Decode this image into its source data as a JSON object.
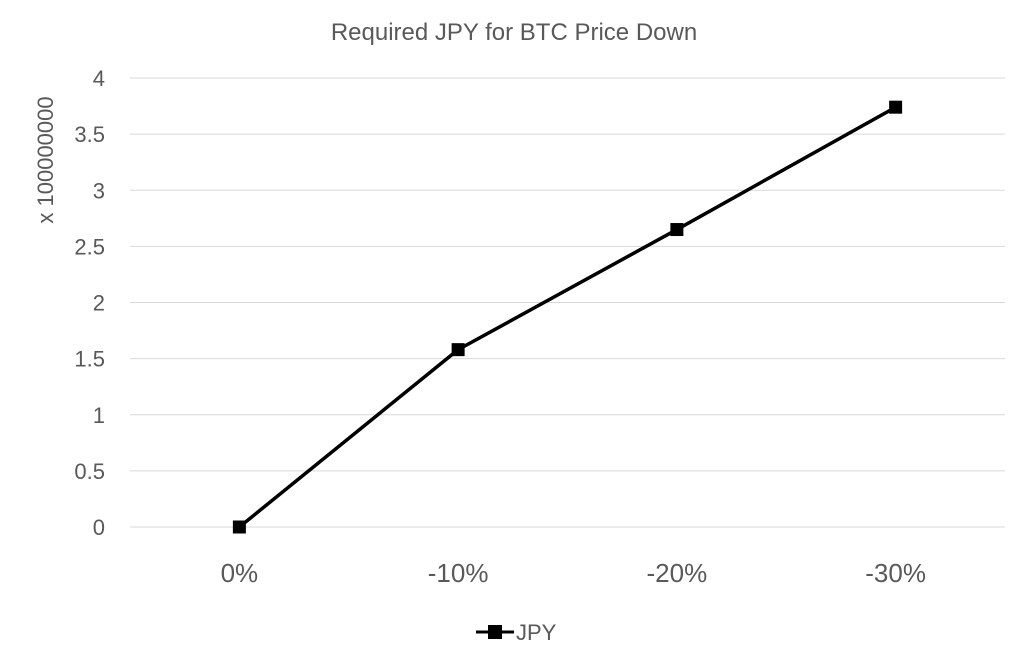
{
  "chart_data": {
    "type": "line",
    "title": "Required JPY for BTC Price Down",
    "xlabel": "",
    "ylabel": "x 100000000",
    "categories": [
      "0%",
      "-10%",
      "-20%",
      "-30%"
    ],
    "series": [
      {
        "name": "JPY",
        "values": [
          0,
          1.58,
          2.65,
          3.74
        ],
        "color": "#000000",
        "marker": "square"
      }
    ],
    "ylim": [
      0,
      4
    ],
    "yticks": [
      0,
      0.5,
      1,
      1.5,
      2,
      2.5,
      3,
      3.5,
      4
    ],
    "ytick_labels": [
      "0",
      "0.5",
      "1",
      "1.5",
      "2",
      "2.5",
      "3",
      "3.5",
      "4"
    ],
    "grid": true,
    "legend": "bottom"
  }
}
